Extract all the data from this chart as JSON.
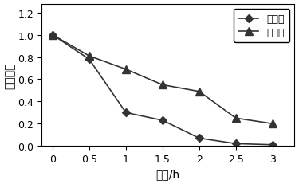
{
  "title": "",
  "xlabel": "时间/h",
  "ylabel": "相对酶活",
  "xlim": [
    -0.15,
    3.3
  ],
  "ylim": [
    0.0,
    1.28
  ],
  "yticks": [
    0.0,
    0.2,
    0.4,
    0.6,
    0.8,
    1.0,
    1.2
  ],
  "xticks": [
    0,
    0.5,
    1,
    1.5,
    2,
    2.5,
    3
  ],
  "xtick_labels": [
    "0",
    "0.5",
    "1",
    "1.5",
    "2",
    "2.5",
    "3"
  ],
  "wild_x": [
    0,
    0.5,
    1,
    1.5,
    2,
    2.5,
    3
  ],
  "wild_y": [
    1.0,
    0.78,
    0.3,
    0.23,
    0.07,
    0.02,
    0.01
  ],
  "modified_x": [
    0,
    0.5,
    1,
    1.5,
    2,
    2.5,
    3
  ],
  "modified_y": [
    1.0,
    0.81,
    0.69,
    0.55,
    0.49,
    0.25,
    0.2
  ],
  "wild_label": "野生酶",
  "modified_label": "修饰酶",
  "line_color": "#333333",
  "background_color": "#ffffff",
  "legend_fontsize": 9,
  "axis_fontsize": 10,
  "tick_fontsize": 9
}
